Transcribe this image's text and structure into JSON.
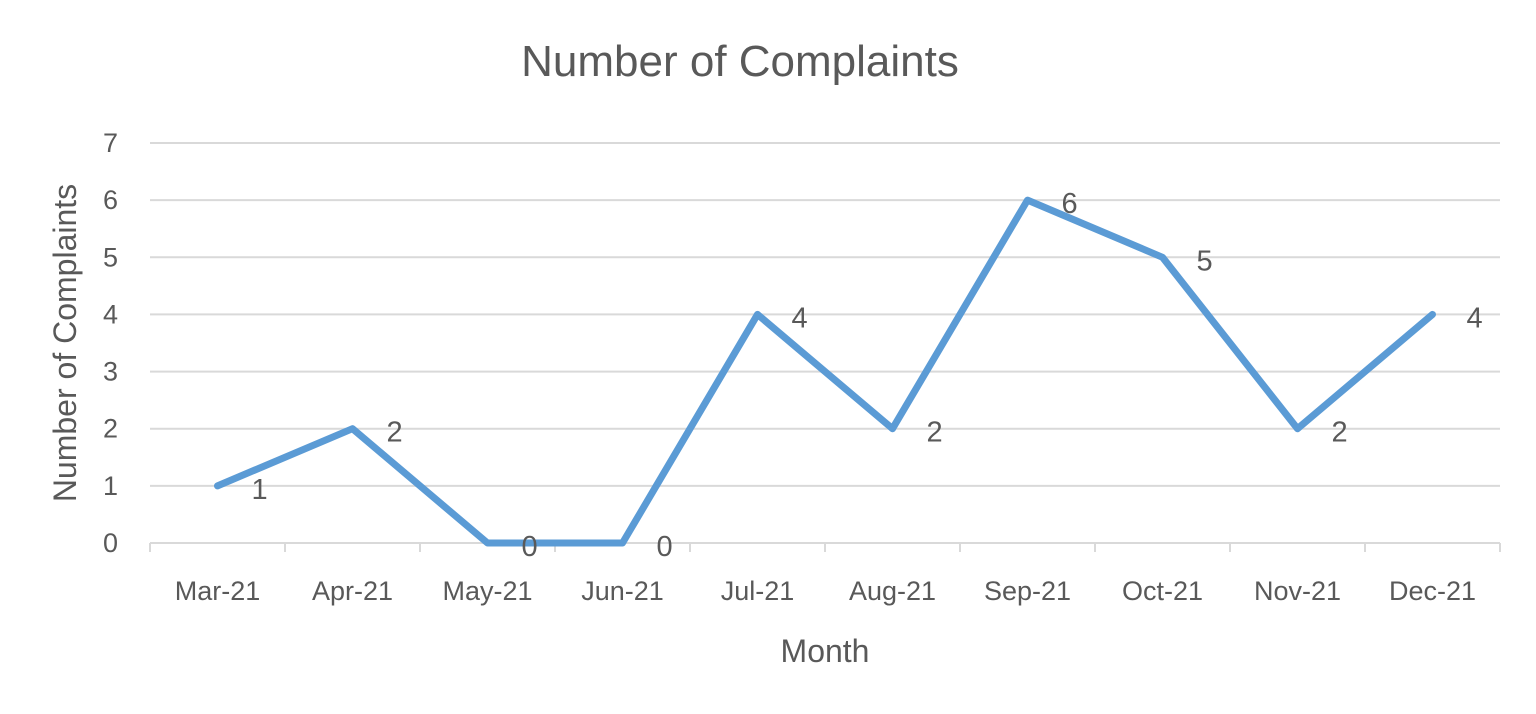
{
  "chart_data": {
    "type": "line",
    "title": "Number of Complaints",
    "xlabel": "Month",
    "ylabel": "Number of Complaints",
    "categories": [
      "Mar-21",
      "Apr-21",
      "May-21",
      "Jun-21",
      "Jul-21",
      "Aug-21",
      "Sep-21",
      "Oct-21",
      "Nov-21",
      "Dec-21"
    ],
    "series": [
      {
        "values": [
          1,
          2,
          0,
          0,
          4,
          2,
          6,
          5,
          2,
          4
        ],
        "color": "#5B9BD5"
      }
    ],
    "data_labels": true,
    "ylim": [
      0,
      7
    ],
    "yticks": [
      0,
      1,
      2,
      3,
      4,
      5,
      6,
      7
    ],
    "grid": true,
    "legend": "none"
  }
}
